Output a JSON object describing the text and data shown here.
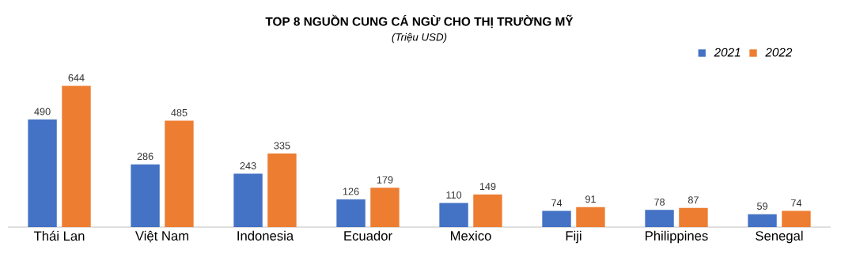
{
  "chart_data": {
    "type": "bar",
    "title": "TOP 8 NGUỒN CUNG CÁ NGỪ CHO THỊ TRƯỜNG MỸ",
    "subtitle": "(Triệu USD)",
    "categories": [
      "Thái Lan",
      "Việt Nam",
      "Indonesia",
      "Ecuador",
      "Mexico",
      "Fiji",
      "Philippines",
      "Senegal"
    ],
    "series": [
      {
        "name": "2021",
        "color": "#4472c4",
        "values": [
          490,
          286,
          243,
          126,
          110,
          74,
          78,
          59
        ]
      },
      {
        "name": "2022",
        "color": "#ed7d31",
        "values": [
          644,
          485,
          335,
          179,
          149,
          91,
          87,
          74
        ]
      }
    ],
    "data_labels": true,
    "legend": "top right"
  }
}
